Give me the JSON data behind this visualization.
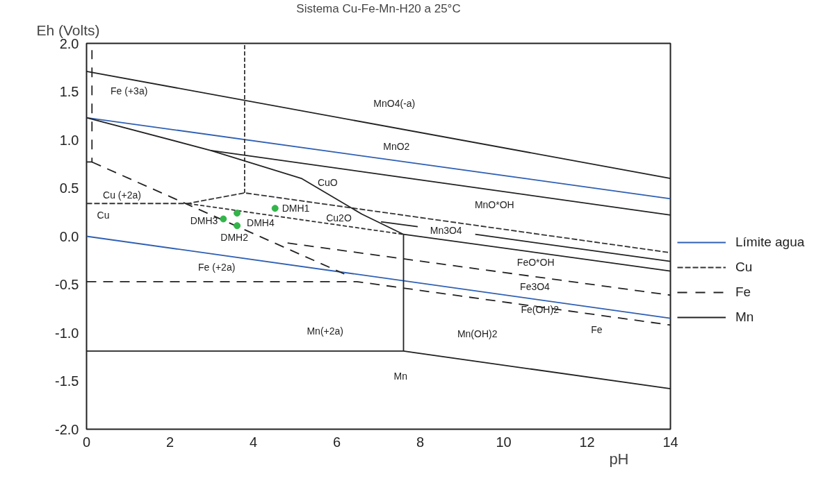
{
  "chart_data": {
    "type": "line",
    "title": "Sistema Cu-Fe-Mn-H20 a 25°C",
    "xlabel": "pH",
    "ylabel": "Eh (Volts)",
    "xlim": [
      0,
      14
    ],
    "ylim": [
      -2.0,
      2.0
    ],
    "xticks": [
      0,
      2,
      4,
      6,
      8,
      10,
      12,
      14
    ],
    "yticks": [
      {
        "value": -2.0,
        "label": "-2.0"
      },
      {
        "value": -1.5,
        "label": "-1.5"
      },
      {
        "value": -1.0,
        "label": "-1.0"
      },
      {
        "value": -0.5,
        "label": "-0.5"
      },
      {
        "value": 0.0,
        "label": "0.0"
      },
      {
        "value": 0.5,
        "label": "0.5"
      },
      {
        "value": 1.0,
        "label": "1.0"
      },
      {
        "value": 1.5,
        "label": "1.5"
      },
      {
        "value": 2.0,
        "label": "2.0"
      }
    ],
    "grid": false,
    "legend": "right",
    "series": [
      {
        "name": "Límite agua",
        "color": "#2f5fb3",
        "line_style": "solid",
        "x": [
          0,
          14
        ],
        "values": [
          1.23,
          0.39
        ]
      },
      {
        "color": "#2f5fb3",
        "line_style": "solid",
        "x": [
          0,
          14
        ],
        "values": [
          0.0,
          -0.85
        ]
      },
      {
        "name": "Cu",
        "color": "#333333",
        "line_style": "dotted",
        "x": [
          0,
          2.43,
          3.79,
          14
        ],
        "values": [
          0.34,
          0.34,
          0.45,
          -0.17
        ]
      },
      {
        "color": "#333333",
        "line_style": "dotted",
        "x": [
          3.79,
          3.79
        ],
        "values": [
          0.45,
          2.0
        ]
      },
      {
        "color": "#333333",
        "line_style": "dotted",
        "x": [
          2.43,
          7.6
        ],
        "values": [
          0.34,
          0.02
        ]
      },
      {
        "name": "Fe",
        "color": "#222222",
        "line_style": "dashed",
        "x": [
          0,
          0.13,
          0.13
        ],
        "values": [
          0.77,
          0.77,
          1.93
        ]
      },
      {
        "color": "#222222",
        "line_style": "dashed",
        "x": [
          0.13,
          6.18
        ],
        "values": [
          0.77,
          -0.39
        ]
      },
      {
        "color": "#222222",
        "line_style": "dashed",
        "x": [
          4.82,
          14
        ],
        "values": [
          -0.07,
          -0.61
        ]
      },
      {
        "color": "#222222",
        "line_style": "dashed",
        "x": [
          0,
          6.48,
          14
        ],
        "values": [
          -0.47,
          -0.47,
          -0.92
        ]
      },
      {
        "name": "Mn",
        "color": "#222222",
        "line_style": "solid",
        "x": [
          0,
          14
        ],
        "values": [
          1.71,
          0.6
        ]
      },
      {
        "color": "#222222",
        "line_style": "solid",
        "x": [
          0,
          2.98,
          5.15,
          6.6,
          7.6,
          7.6
        ],
        "values": [
          1.23,
          0.89,
          0.6,
          0.23,
          0.02,
          -1.19
        ]
      },
      {
        "color": "#222222",
        "line_style": "solid",
        "x": [
          2.98,
          14
        ],
        "values": [
          0.89,
          0.22
        ]
      },
      {
        "color": "#222222",
        "line_style": "solid",
        "x": [
          7.06,
          7.94
        ],
        "values": [
          0.15,
          0.1
        ]
      },
      {
        "color": "#222222",
        "line_style": "solid",
        "x": [
          9.32,
          14
        ],
        "values": [
          0.02,
          -0.26
        ]
      },
      {
        "color": "#222222",
        "line_style": "solid",
        "x": [
          7.6,
          14
        ],
        "values": [
          0.02,
          -0.36
        ]
      },
      {
        "color": "#222222",
        "line_style": "solid",
        "x": [
          0,
          7.6,
          14
        ],
        "values": [
          -1.19,
          -1.19,
          -1.58
        ]
      },
      {
        "type": "scatter",
        "marker": "circle",
        "color": "#33b54a",
        "x": [
          4.52,
          3.61,
          3.28,
          3.61
        ],
        "values": [
          0.29,
          0.11,
          0.18,
          0.24
        ]
      }
    ],
    "annotations": [
      "MnO4(-a)",
      "MnO2",
      "CuO",
      "MnO*OH",
      "Cu (+2a)",
      "Cu",
      "Cu2O",
      "Mn3O4",
      {
        "text": "DMH1",
        "x": 4.52,
        "y": 0.29
      },
      {
        "text": "DMH3",
        "x": 3.28,
        "y": 0.18
      },
      {
        "text": "DMH4",
        "x": 3.61,
        "y": 0.24
      },
      {
        "text": "DMH2",
        "x": 3.61,
        "y": 0.11
      },
      "FeO*OH",
      "Fe3O4",
      "Fe(OH)2",
      "Fe (+2a)",
      "Mn(+2a)",
      "Mn(OH)2",
      "Fe",
      "Mn",
      "Fe (+3a)"
    ]
  }
}
